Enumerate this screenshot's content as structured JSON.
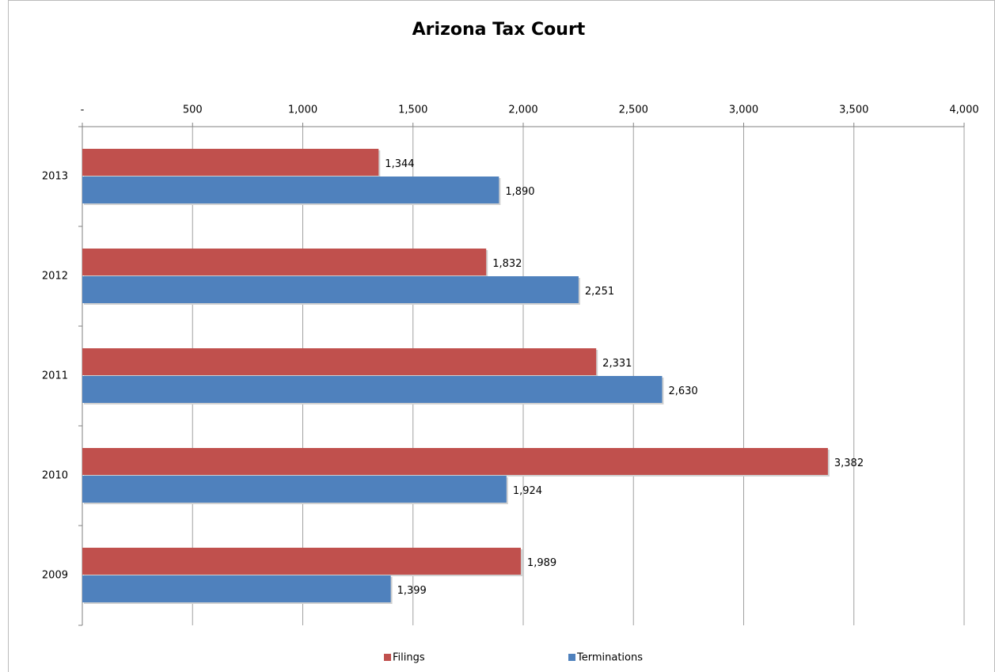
{
  "chart_data": {
    "type": "bar",
    "orientation": "horizontal",
    "title": "Arizona Tax Court",
    "categories": [
      "2013",
      "2012",
      "2011",
      "2010",
      "2009"
    ],
    "series": [
      {
        "name": "Filings",
        "color": "#c0504d",
        "values": [
          1344,
          1832,
          2331,
          3382,
          1989
        ],
        "value_labels": [
          "1,344",
          "1,832",
          "2,331",
          "3,382",
          "1,989"
        ]
      },
      {
        "name": "Terminations",
        "color": "#4f81bd",
        "values": [
          1890,
          2251,
          2630,
          1924,
          1399
        ],
        "value_labels": [
          "1,890",
          "2,251",
          "2,630",
          "1,924",
          "1,399"
        ]
      }
    ],
    "xlim": [
      0,
      4000
    ],
    "xticks": [
      {
        "value": 0,
        "label": "-"
      },
      500,
      {
        "value": 1000,
        "label": "1,000"
      },
      {
        "value": 1500,
        "label": "1,500"
      },
      {
        "value": 2000,
        "label": "2,000"
      },
      {
        "value": 2500,
        "label": "2,500"
      },
      {
        "value": 3000,
        "label": "3,000"
      },
      {
        "value": 3500,
        "label": "3,500"
      },
      {
        "value": 4000,
        "label": "4,000"
      }
    ],
    "grid": true,
    "legend": "bottom"
  }
}
